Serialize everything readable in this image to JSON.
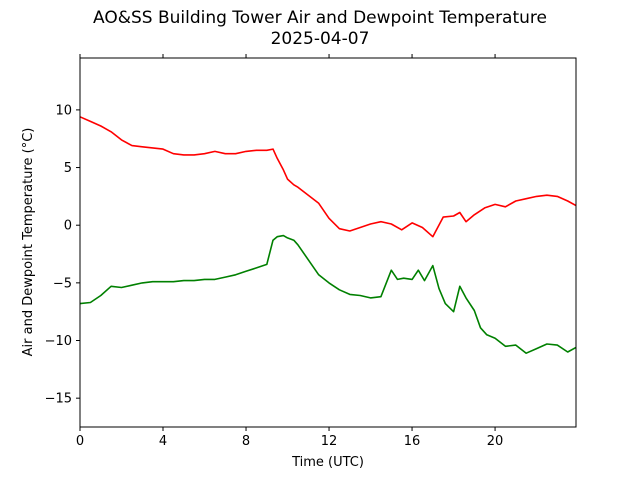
{
  "chart_data": {
    "type": "line",
    "title": "AO&SS Building Tower Air and Dewpoint Temperature",
    "subtitle": "2025-04-07",
    "xlabel": "Time (UTC)",
    "ylabel": "Air and Dewpoint Temperature (°C)",
    "xlim": [
      0,
      23.9
    ],
    "ylim": [
      -17.5,
      14.5
    ],
    "xticks": [
      0,
      4,
      8,
      12,
      16,
      20
    ],
    "yticks": [
      -15,
      -10,
      -5,
      0,
      5,
      10
    ],
    "grid": false,
    "series": [
      {
        "color": "#ff0000",
        "x": [
          0,
          0.5,
          1,
          1.5,
          2,
          2.5,
          3,
          3.5,
          4,
          4.5,
          5,
          5.5,
          6,
          6.5,
          7,
          7.5,
          8,
          8.5,
          9,
          9.3,
          9.5,
          9.8,
          10,
          10.3,
          10.5,
          11,
          11.5,
          12,
          12.5,
          13,
          13.5,
          14,
          14.5,
          15,
          15.5,
          16,
          16.5,
          17,
          17.5,
          18,
          18.3,
          18.6,
          19,
          19.5,
          20,
          20.5,
          21,
          21.5,
          22,
          22.5,
          23,
          23.5,
          23.9
        ],
        "y": [
          9.4,
          9.0,
          8.6,
          8.1,
          7.4,
          6.9,
          6.8,
          6.7,
          6.6,
          6.2,
          6.1,
          6.1,
          6.2,
          6.4,
          6.2,
          6.2,
          6.4,
          6.5,
          6.5,
          6.6,
          5.8,
          4.8,
          4.0,
          3.5,
          3.3,
          2.6,
          1.9,
          0.6,
          -0.3,
          -0.5,
          -0.2,
          0.1,
          0.3,
          0.1,
          -0.4,
          0.2,
          -0.2,
          -1.0,
          0.7,
          0.8,
          1.1,
          0.3,
          0.9,
          1.5,
          1.8,
          1.6,
          2.1,
          2.3,
          2.5,
          2.6,
          2.5,
          2.1,
          1.7
        ]
      },
      {
        "color": "#008000",
        "x": [
          0,
          0.5,
          1,
          1.5,
          2,
          2.5,
          3,
          3.5,
          4,
          4.5,
          5,
          5.5,
          6,
          6.5,
          7,
          7.5,
          8,
          8.5,
          9,
          9.3,
          9.5,
          9.8,
          10,
          10.3,
          10.5,
          11,
          11.5,
          12,
          12.5,
          13,
          13.5,
          14,
          14.5,
          15,
          15.3,
          15.6,
          16,
          16.3,
          16.6,
          17,
          17.3,
          17.6,
          18,
          18.3,
          18.6,
          19,
          19.3,
          19.6,
          20,
          20.5,
          21,
          21.5,
          22,
          22.5,
          23,
          23.5,
          23.9
        ],
        "y": [
          -6.8,
          -6.7,
          -6.1,
          -5.3,
          -5.4,
          -5.2,
          -5.0,
          -4.9,
          -4.9,
          -4.9,
          -4.8,
          -4.8,
          -4.7,
          -4.7,
          -4.5,
          -4.3,
          -4.0,
          -3.7,
          -3.4,
          -1.3,
          -1.0,
          -0.9,
          -1.1,
          -1.3,
          -1.7,
          -3.0,
          -4.3,
          -5.0,
          -5.6,
          -6.0,
          -6.1,
          -6.3,
          -6.2,
          -3.9,
          -4.7,
          -4.6,
          -4.7,
          -3.9,
          -4.8,
          -3.5,
          -5.5,
          -6.8,
          -7.5,
          -5.3,
          -6.3,
          -7.4,
          -8.9,
          -9.5,
          -9.8,
          -10.5,
          -10.4,
          -11.1,
          -10.7,
          -10.3,
          -10.4,
          -11.0,
          -10.6
        ]
      }
    ]
  }
}
